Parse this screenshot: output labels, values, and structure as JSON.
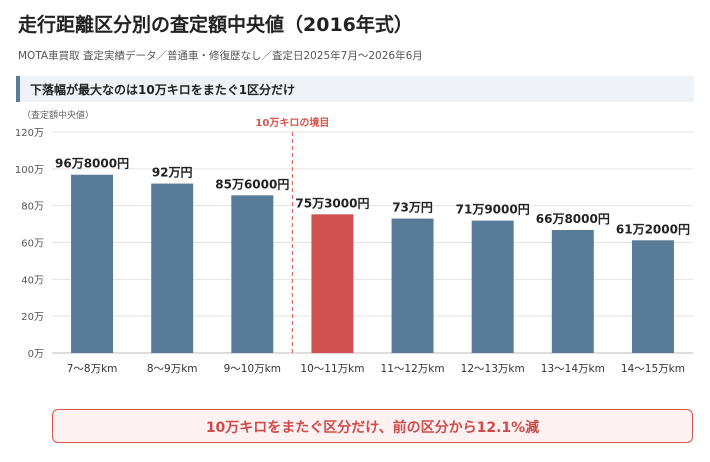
{
  "header": {
    "title": "走行距離区分別の査定額中央値（2016年式）",
    "subtitle": "MOTA車買取 査定実績データ／普通車・修復歴なし／査定日2025年7月〜2026年6月"
  },
  "banner": {
    "text": "下落幅が最大なのは10万キロをまたぐ1区分だけ"
  },
  "callout": {
    "text": "10万キロをまたぐ区分だけ、前の区分から12.1%減"
  },
  "colors": {
    "bar": "#587c97",
    "highlight": "#d15050",
    "grid": "#e3e3e3",
    "marker": "#d9534f"
  },
  "chart_data": {
    "type": "bar",
    "ylabel": "（査定額中央値）",
    "ylim": [
      0,
      1200000
    ],
    "y_ticks": [
      0,
      200000,
      400000,
      600000,
      800000,
      1000000,
      1200000
    ],
    "y_tick_labels": [
      "0万",
      "20万",
      "40万",
      "60万",
      "80万",
      "100万",
      "120万"
    ],
    "grid": true,
    "categories": [
      "7〜8万km",
      "8〜9万km",
      "9〜10万km",
      "10〜11万km",
      "11〜12万km",
      "12〜13万km",
      "13〜14万km",
      "14〜15万km"
    ],
    "values": [
      968000,
      920000,
      856000,
      753000,
      730000,
      719000,
      668000,
      612000
    ],
    "value_labels": [
      "96万8000円",
      "92万円",
      "85万6000円",
      "75万3000円",
      "73万円",
      "71万9000円",
      "66万8000円",
      "61万2000円"
    ],
    "highlight_index": 3,
    "marker_label": "10万キロの境目"
  }
}
